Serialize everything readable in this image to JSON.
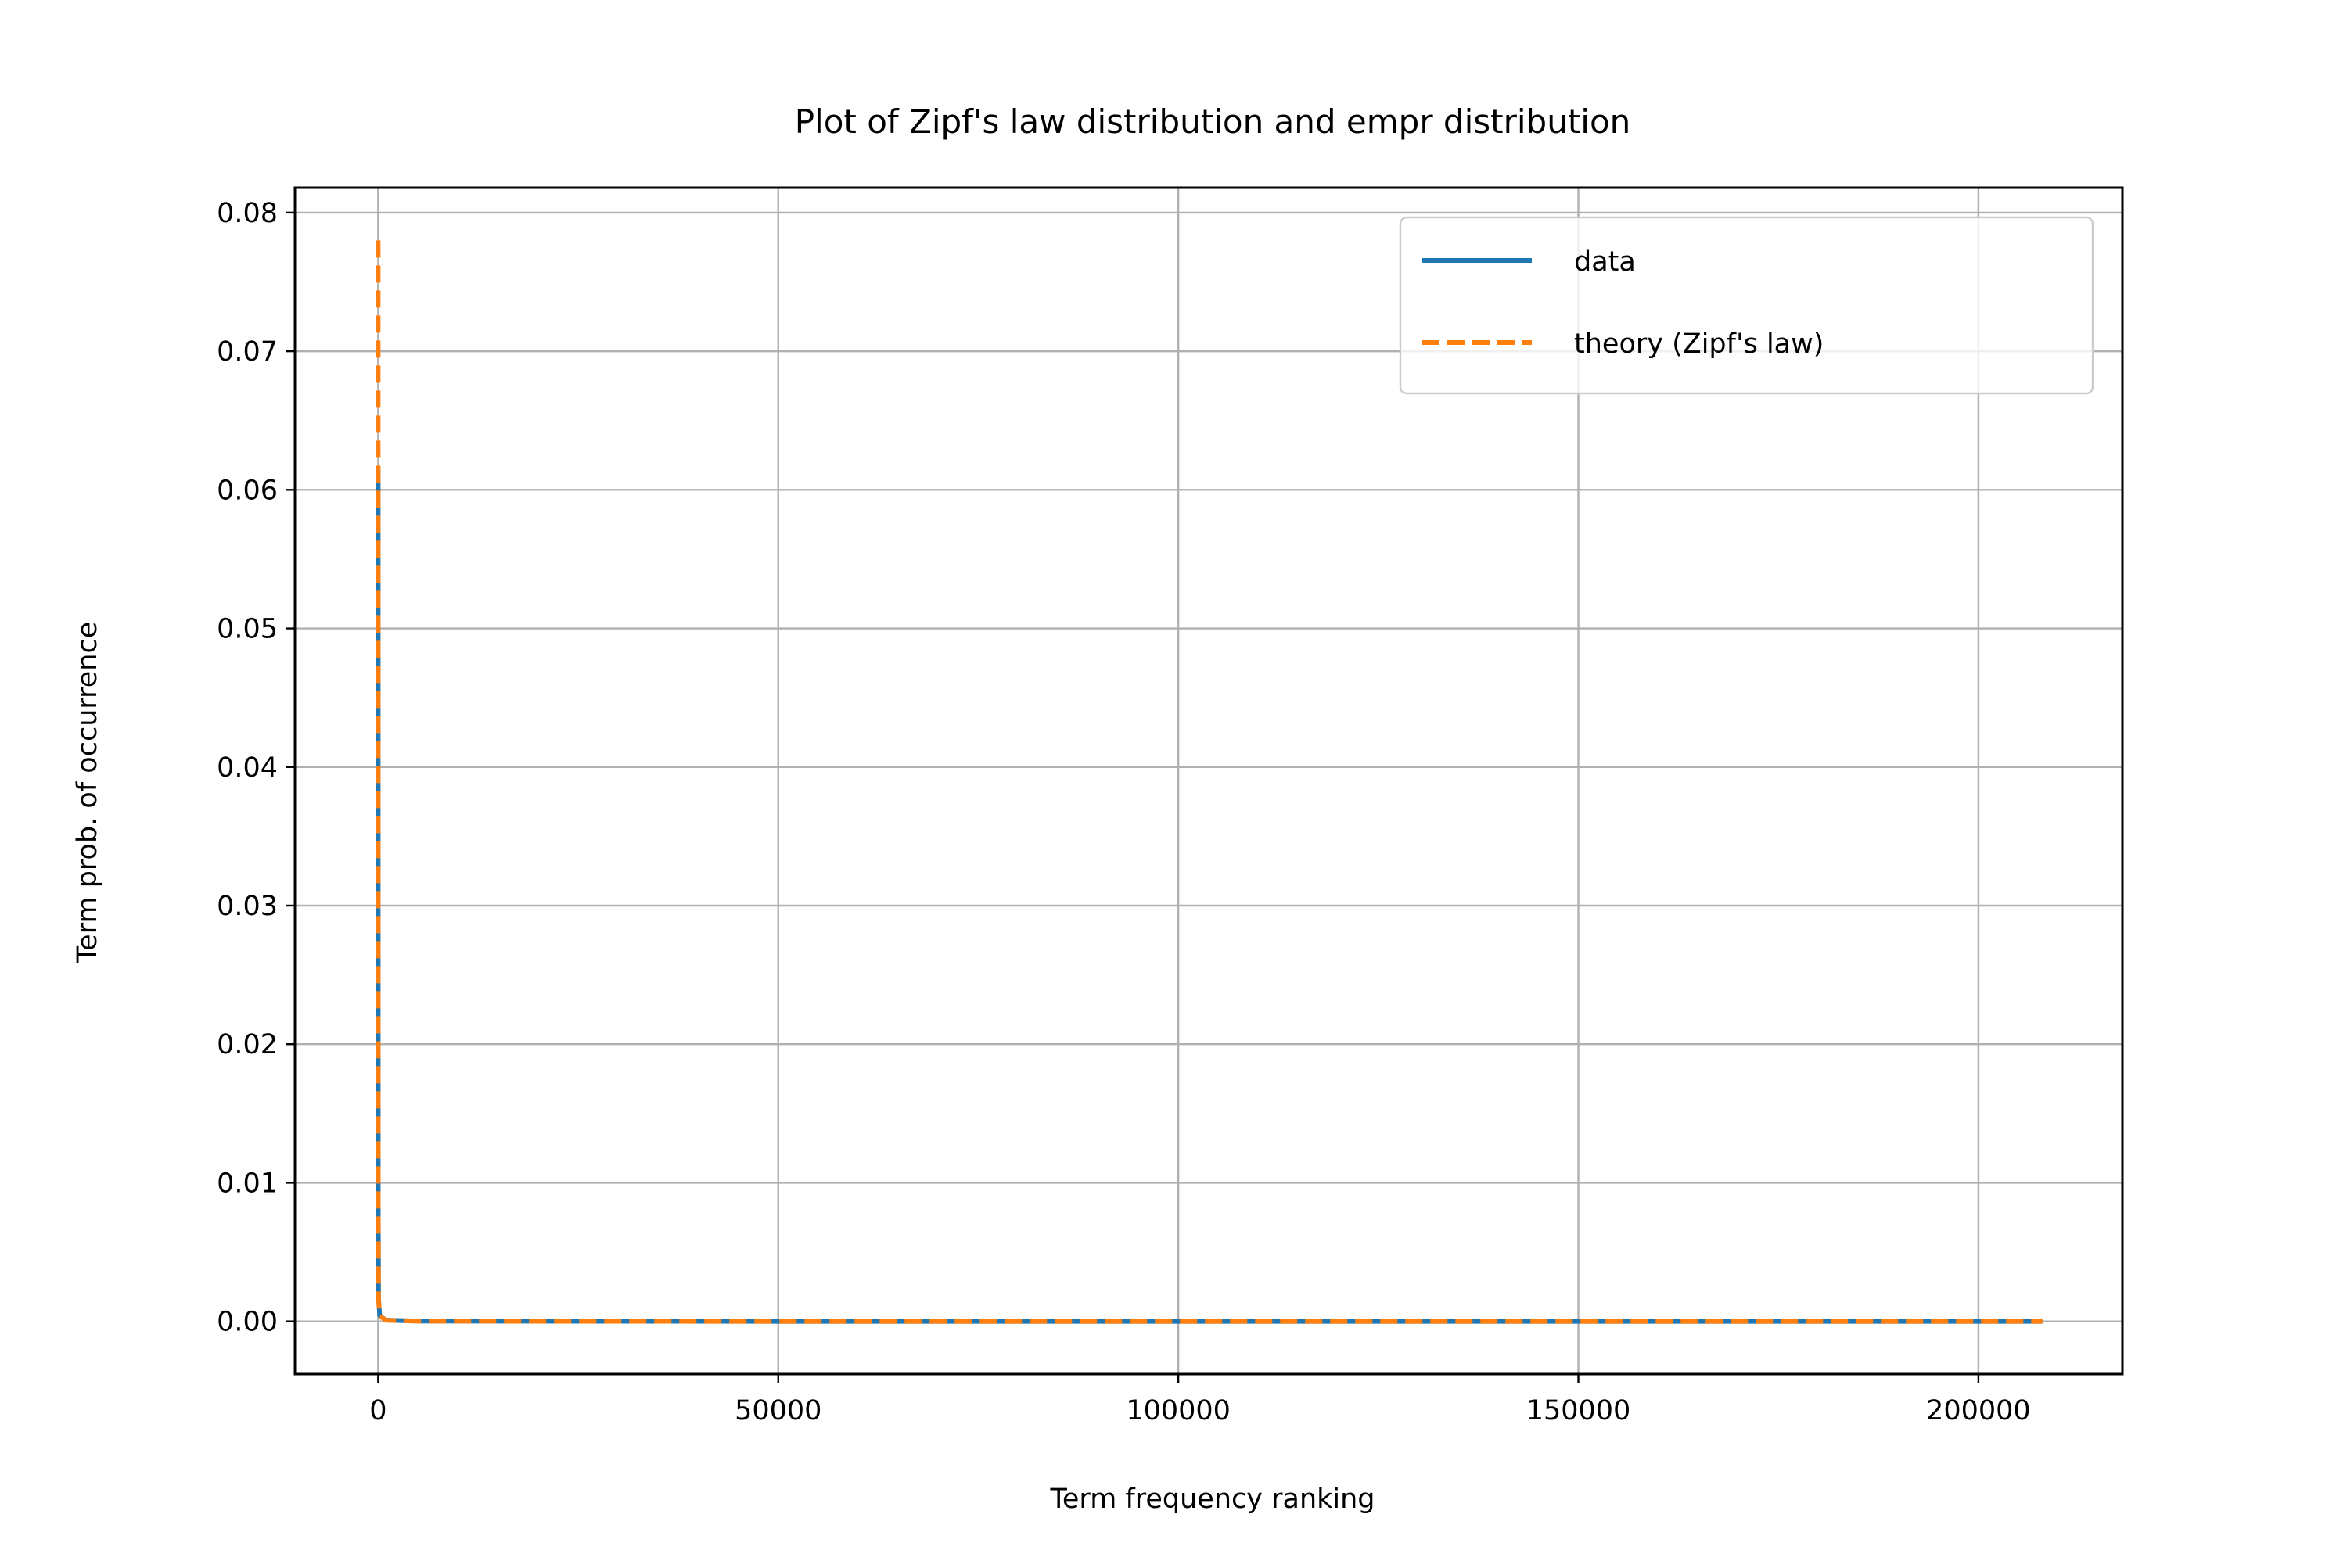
{
  "chart_data": {
    "type": "line",
    "title": "Plot of Zipf's law distribution and empr distribution",
    "xlabel": "Term frequency ranking",
    "ylabel": "Term prob. of occurrence",
    "xlim": [
      -10400,
      218000
    ],
    "ylim": [
      -0.0038,
      0.0818
    ],
    "x_ticks": [
      0,
      50000,
      100000,
      150000,
      200000
    ],
    "x_tick_labels": [
      "0",
      "50000",
      "100000",
      "150000",
      "200000"
    ],
    "y_ticks": [
      0.0,
      0.01,
      0.02,
      0.03,
      0.04,
      0.05,
      0.06,
      0.07,
      0.08
    ],
    "y_tick_labels": [
      "0.00",
      "0.01",
      "0.02",
      "0.03",
      "0.04",
      "0.05",
      "0.06",
      "0.07",
      "0.08"
    ],
    "grid": true,
    "legend_position": "top-right",
    "series": [
      {
        "name": "data",
        "color": "#1f77b4",
        "style": "solid",
        "x": [
          1,
          2,
          5,
          10,
          50,
          200,
          1000,
          5000,
          50000,
          100000,
          150000,
          208000
        ],
        "y": [
          0.0615,
          0.035,
          0.015,
          0.008,
          0.0016,
          0.0004,
          9e-05,
          2e-05,
          2e-06,
          1e-06,
          5e-07,
          3e-07
        ]
      },
      {
        "name": "theory (Zipf's law)",
        "color": "#ff7f0e",
        "style": "dashed",
        "x": [
          1,
          2,
          5,
          10,
          50,
          200,
          1000,
          5000,
          50000,
          100000,
          150000,
          208000
        ],
        "y": [
          0.078,
          0.039,
          0.0156,
          0.0078,
          0.00156,
          0.00039,
          7.8e-05,
          1.56e-05,
          1.6e-06,
          8e-07,
          5e-07,
          4e-07
        ]
      }
    ]
  }
}
